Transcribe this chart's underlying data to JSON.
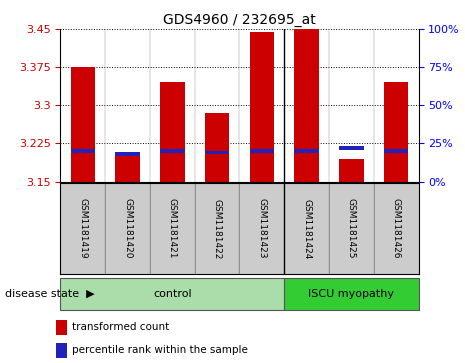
{
  "title": "GDS4960 / 232695_at",
  "samples": [
    "GSM1181419",
    "GSM1181420",
    "GSM1181421",
    "GSM1181422",
    "GSM1181423",
    "GSM1181424",
    "GSM1181425",
    "GSM1181426"
  ],
  "transformed_count": [
    3.375,
    3.205,
    3.345,
    3.285,
    3.445,
    3.45,
    3.195,
    3.345
  ],
  "percentile_rank": [
    20,
    18,
    20,
    19,
    20,
    20,
    22,
    20
  ],
  "y_min": 3.15,
  "y_max": 3.45,
  "y_ticks": [
    3.15,
    3.225,
    3.3,
    3.375,
    3.45
  ],
  "y_right_ticks": [
    0,
    25,
    50,
    75,
    100
  ],
  "bar_color": "#cc0000",
  "percentile_color": "#2222bb",
  "bg_color": "#cccccc",
  "control_color": "#aaddaa",
  "myopathy_color": "#33cc33",
  "control_label": "control",
  "myopathy_label": "ISCU myopathy",
  "disease_state_label": "disease state",
  "legend1": "transformed count",
  "legend2": "percentile rank within the sample",
  "n_control": 5,
  "n_myopathy": 3,
  "bar_width": 0.55,
  "title_fontsize": 10
}
